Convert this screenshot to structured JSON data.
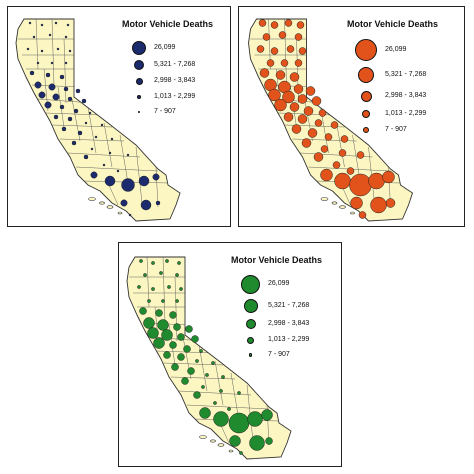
{
  "maps": [
    {
      "id": "blue",
      "legend_title": "Motor Vehicle Deaths",
      "symbol_color": "#1c2a6e",
      "legend": [
        "26,099",
        "5,321 - 7,268",
        "2,998 - 3,843",
        "1,013 - 2,299",
        "7 - 907"
      ]
    },
    {
      "id": "orange",
      "legend_title": "Motor Vehicle Deaths",
      "symbol_color": "#e2531b",
      "legend": [
        "26,099",
        "5,321 - 7,268",
        "2,998 - 3,843",
        "1,013 - 2,299",
        "7 - 907"
      ]
    },
    {
      "id": "green",
      "legend_title": "Motor Vehicle Deaths",
      "symbol_color": "#1f8a2e",
      "legend": [
        "26,099",
        "5,321 - 7,268",
        "2,998 - 3,843",
        "1,013 - 2,299",
        "7 - 907"
      ]
    }
  ],
  "map_fill_color": "#fbf6c2",
  "county_line_color": "#555555"
}
